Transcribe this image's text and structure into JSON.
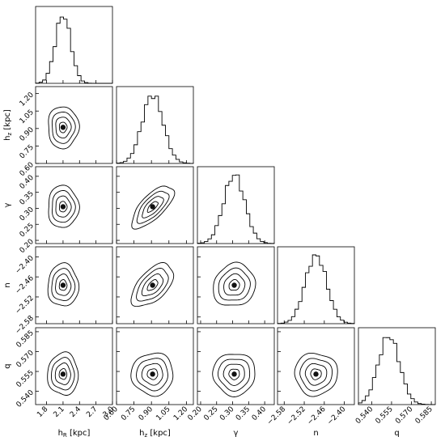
{
  "chart_data": {
    "type": "corner",
    "parameters": [
      {
        "label": "h_R [kpc]",
        "symbol": "h",
        "sub": "R",
        "unit": "[kpc]",
        "range": [
          1.6,
          3.0
        ],
        "ticks": [
          1.8,
          2.1,
          2.4,
          2.7,
          3.0
        ],
        "tick_labels": [
          "1.8",
          "2.1",
          "2.4",
          "2.7",
          "3.0"
        ],
        "mean": 2.1,
        "sigma": 0.14
      },
      {
        "label": "h_z [kpc]",
        "symbol": "h",
        "sub": "z",
        "unit": "[kpc]",
        "range": [
          0.6,
          1.26
        ],
        "ticks": [
          0.6,
          0.75,
          0.9,
          1.05,
          1.2
        ],
        "tick_labels": [
          "0.60",
          "0.75",
          "0.90",
          "1.05",
          "1.20"
        ],
        "mean": 0.91,
        "sigma": 0.09
      },
      {
        "label": "γ",
        "symbol": "γ",
        "sub": "",
        "unit": "",
        "range": [
          0.19,
          0.43
        ],
        "ticks": [
          0.2,
          0.25,
          0.3,
          0.35,
          0.4
        ],
        "tick_labels": [
          "0.20",
          "0.25",
          "0.30",
          "0.35",
          "0.40"
        ],
        "mean": 0.305,
        "sigma": 0.033
      },
      {
        "label": "n",
        "symbol": "n",
        "sub": "",
        "unit": "",
        "range": [
          -2.6,
          -2.37
        ],
        "ticks": [
          -2.58,
          -2.52,
          -2.46,
          -2.4
        ],
        "tick_labels": [
          "−2.58",
          "−2.52",
          "−2.46",
          "−2.40"
        ],
        "mean": -2.485,
        "sigma": 0.032
      },
      {
        "label": "q",
        "symbol": "q",
        "sub": "",
        "unit": "",
        "range": [
          0.53,
          0.588
        ],
        "ticks": [
          0.54,
          0.555,
          0.57,
          0.585
        ],
        "tick_labels": [
          "0.540",
          "0.555",
          "0.570",
          "0.585"
        ],
        "mean": 0.553,
        "sigma": 0.008
      }
    ],
    "correlations": [
      [
        1,
        0,
        0,
        0,
        0
      ],
      [
        0,
        1,
        0,
        0,
        0
      ],
      [
        0,
        0.7,
        1,
        0,
        0
      ],
      [
        0,
        0.55,
        0.1,
        1,
        0
      ],
      [
        0,
        0,
        0,
        0,
        1
      ]
    ],
    "contour_levels_sigma": [
      0.5,
      1,
      1.5,
      2
    ],
    "grid": false,
    "legend": "none"
  }
}
